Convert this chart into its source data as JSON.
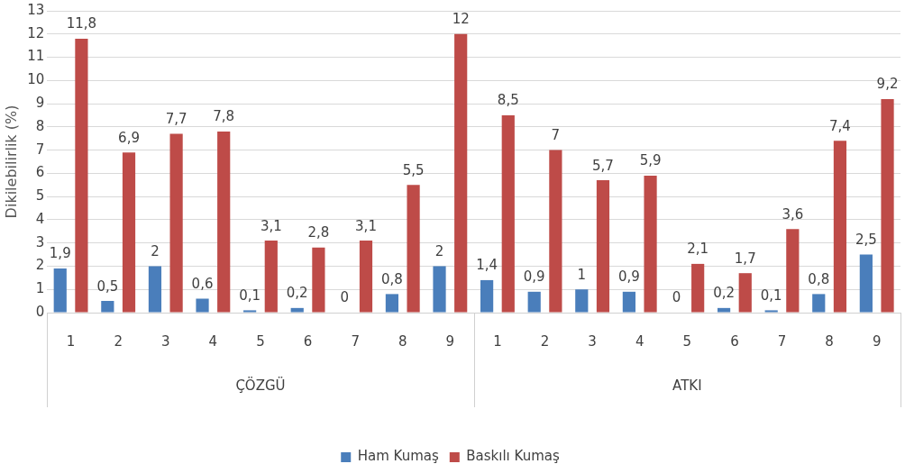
{
  "chart_data": {
    "type": "bar",
    "ylabel": "Dikilebilirlik (%)",
    "categories": [
      "1",
      "2",
      "3",
      "4",
      "5",
      "6",
      "7",
      "8",
      "9",
      "1",
      "2",
      "3",
      "4",
      "5",
      "6",
      "7",
      "8",
      "9"
    ],
    "series": [
      {
        "name": "Ham Kumaş",
        "color": "#4a7ebb",
        "values": [
          1.9,
          0.5,
          2,
          0.6,
          0.1,
          0.2,
          0,
          0.8,
          2,
          1.4,
          0.9,
          1,
          0.9,
          0,
          0.2,
          0.1,
          0.8,
          2.5
        ],
        "value_labels": [
          "1,9",
          "0,5",
          "2",
          "0,6",
          "0,1",
          "0,2",
          "0",
          "0,8",
          "2",
          "1,4",
          "0,9",
          "1",
          "0,9",
          "0",
          "0,2",
          "0,1",
          "0,8",
          "2,5"
        ]
      },
      {
        "name": "Baskılı Kumaş",
        "color": "#be4b48",
        "values": [
          11.8,
          6.9,
          7.7,
          7.8,
          3.1,
          2.8,
          3.1,
          5.5,
          12,
          8.5,
          7,
          5.7,
          5.9,
          2.1,
          1.7,
          3.6,
          7.4,
          9.2
        ],
        "value_labels": [
          "11,8",
          "6,9",
          "7,7",
          "7,8",
          "3,1",
          "2,8",
          "3,1",
          "5,5",
          "12",
          "8,5",
          "7",
          "5,7",
          "5,9",
          "2,1",
          "1,7",
          "3,6",
          "7,4",
          "9,2"
        ]
      }
    ],
    "annotations": [
      "ÇÖZGÜ",
      "ATKI"
    ],
    "ylim": [
      0,
      13
    ],
    "yticks": [
      0,
      1,
      2,
      3,
      4,
      5,
      6,
      7,
      8,
      9,
      10,
      11,
      12,
      13
    ],
    "grid": "y",
    "legend": "bottom"
  }
}
